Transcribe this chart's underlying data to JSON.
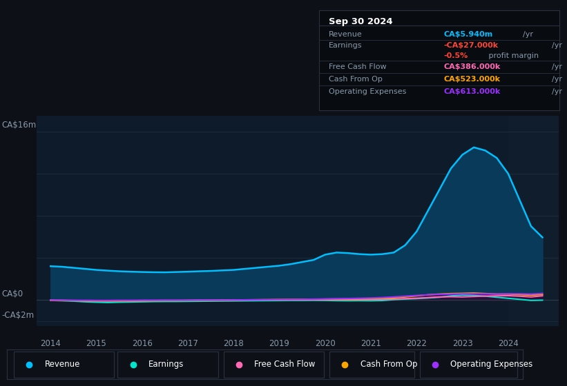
{
  "bg_color": "#0d1117",
  "plot_bg_color": "#0d1b2a",
  "plot_bg_right": "#131f2e",
  "grid_color": "#1e2d3d",
  "text_color": "#8899aa",
  "title_color": "#ffffff",
  "ylabel_ca16": "CA$16m",
  "ylabel_ca0": "CA$0",
  "ylabel_cam2": "-CA$2m",
  "revenue_color": "#00bfff",
  "earnings_color": "#00e5cc",
  "fcf_color": "#ff69b4",
  "cashfromop_color": "#ffa500",
  "opex_color": "#9b30ff",
  "revenue_fill_color": "#0a3a5a",
  "earnings_fill_color": "#003322",
  "fcf_fill_color": "#3a0a1a",
  "cashfromop_fill_color": "#3a2200",
  "opex_fill_color": "#2a0a4a",
  "tooltip_bg": "#080c10",
  "tooltip_border": "#2a3040",
  "legend_bg": "#0d1117",
  "legend_border": "#2a3040",
  "years": [
    2014.0,
    2014.25,
    2014.5,
    2014.75,
    2015.0,
    2015.25,
    2015.5,
    2015.75,
    2016.0,
    2016.25,
    2016.5,
    2016.75,
    2017.0,
    2017.25,
    2017.5,
    2017.75,
    2018.0,
    2018.25,
    2018.5,
    2018.75,
    2019.0,
    2019.25,
    2019.5,
    2019.75,
    2020.0,
    2020.25,
    2020.5,
    2020.75,
    2021.0,
    2021.25,
    2021.5,
    2021.75,
    2022.0,
    2022.25,
    2022.5,
    2022.75,
    2023.0,
    2023.25,
    2023.5,
    2023.75,
    2024.0,
    2024.25,
    2024.5,
    2024.75
  ],
  "revenue": [
    3.2,
    3.15,
    3.05,
    2.95,
    2.85,
    2.78,
    2.72,
    2.68,
    2.65,
    2.63,
    2.62,
    2.65,
    2.68,
    2.72,
    2.75,
    2.8,
    2.85,
    2.95,
    3.05,
    3.15,
    3.25,
    3.4,
    3.6,
    3.8,
    4.3,
    4.5,
    4.45,
    4.35,
    4.3,
    4.35,
    4.5,
    5.2,
    6.5,
    8.5,
    10.5,
    12.5,
    13.8,
    14.5,
    14.2,
    13.5,
    12.0,
    9.5,
    7.0,
    5.94
  ],
  "earnings": [
    -0.05,
    -0.08,
    -0.12,
    -0.18,
    -0.22,
    -0.25,
    -0.22,
    -0.2,
    -0.18,
    -0.16,
    -0.15,
    -0.15,
    -0.14,
    -0.13,
    -0.12,
    -0.11,
    -0.1,
    -0.09,
    -0.08,
    -0.07,
    -0.06,
    -0.05,
    -0.05,
    -0.04,
    -0.05,
    -0.07,
    -0.08,
    -0.07,
    -0.08,
    -0.06,
    0.02,
    0.08,
    0.12,
    0.18,
    0.25,
    0.38,
    0.45,
    0.42,
    0.35,
    0.25,
    0.15,
    0.05,
    -0.05,
    -0.027
  ],
  "fcf": [
    -0.04,
    -0.05,
    -0.07,
    -0.09,
    -0.1,
    -0.11,
    -0.1,
    -0.1,
    -0.09,
    -0.08,
    -0.07,
    -0.07,
    -0.06,
    -0.05,
    -0.05,
    -0.04,
    -0.03,
    -0.02,
    -0.01,
    0.0,
    0.01,
    0.01,
    0.02,
    0.02,
    0.02,
    0.02,
    0.02,
    0.03,
    0.04,
    0.06,
    0.08,
    0.12,
    0.16,
    0.22,
    0.28,
    0.3,
    0.28,
    0.32,
    0.36,
    0.38,
    0.4,
    0.35,
    0.28,
    0.386
  ],
  "cashfromop": [
    -0.04,
    -0.05,
    -0.06,
    -0.07,
    -0.08,
    -0.08,
    -0.08,
    -0.07,
    -0.06,
    -0.06,
    -0.05,
    -0.05,
    -0.04,
    -0.03,
    -0.03,
    -0.02,
    -0.01,
    0.0,
    0.01,
    0.02,
    0.03,
    0.04,
    0.05,
    0.06,
    0.07,
    0.08,
    0.09,
    0.1,
    0.12,
    0.15,
    0.2,
    0.28,
    0.38,
    0.48,
    0.55,
    0.6,
    0.62,
    0.65,
    0.6,
    0.55,
    0.55,
    0.5,
    0.45,
    0.523
  ],
  "opex": [
    -0.03,
    -0.03,
    -0.04,
    -0.04,
    -0.05,
    -0.05,
    -0.04,
    -0.04,
    -0.03,
    -0.03,
    -0.03,
    -0.03,
    -0.03,
    -0.02,
    -0.02,
    -0.02,
    -0.01,
    0.0,
    0.01,
    0.02,
    0.03,
    0.04,
    0.05,
    0.07,
    0.09,
    0.11,
    0.13,
    0.15,
    0.18,
    0.22,
    0.28,
    0.35,
    0.42,
    0.48,
    0.52,
    0.55,
    0.57,
    0.58,
    0.57,
    0.56,
    0.58,
    0.58,
    0.55,
    0.613
  ],
  "ylim_min": -2.5,
  "ylim_max": 17.5,
  "xlim_min": 2013.7,
  "xlim_max": 2025.1,
  "grid_y_vals": [
    0,
    4,
    8,
    12,
    16
  ],
  "year_ticks": [
    2014,
    2015,
    2016,
    2017,
    2018,
    2019,
    2020,
    2021,
    2022,
    2023,
    2024
  ],
  "legend_items": [
    {
      "label": "Revenue",
      "color": "#00bfff"
    },
    {
      "label": "Earnings",
      "color": "#00e5cc"
    },
    {
      "label": "Free Cash Flow",
      "color": "#ff69b4"
    },
    {
      "label": "Cash From Op",
      "color": "#ffa500"
    },
    {
      "label": "Operating Expenses",
      "color": "#9b30ff"
    }
  ],
  "tooltip": {
    "title": "Sep 30 2024",
    "rows": [
      {
        "label": "Revenue",
        "value": "CA$5.940m",
        "value_color": "#00bfff",
        "suffix": " /yr",
        "extra": null
      },
      {
        "label": "Earnings",
        "value": "-CA$27.000k",
        "value_color": "#ff4433",
        "suffix": " /yr",
        "extra": {
          "text": "-0.5% profit margin",
          "pct_color": "#ff4433",
          "pct": "-0.5%",
          "rest": " profit margin"
        }
      },
      {
        "label": "Free Cash Flow",
        "value": "CA$386.000k",
        "value_color": "#ff69b4",
        "suffix": " /yr",
        "extra": null
      },
      {
        "label": "Cash From Op",
        "value": "CA$523.000k",
        "value_color": "#ffa500",
        "suffix": " /yr",
        "extra": null
      },
      {
        "label": "Operating Expenses",
        "value": "CA$613.000k",
        "value_color": "#9b30ff",
        "suffix": " /yr",
        "extra": null
      }
    ]
  }
}
